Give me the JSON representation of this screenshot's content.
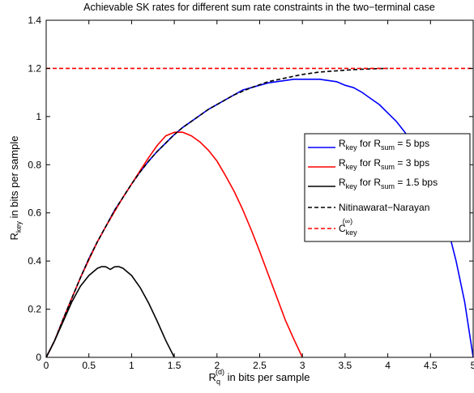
{
  "chart_data": {
    "type": "line",
    "title": "Achievable SK rates for different sum rate constraints in the two−terminal case",
    "xlabel": {
      "main": "R",
      "sub": "q",
      "sup": "(d)",
      "suffix": " in bits per sample"
    },
    "ylabel": {
      "main": "R",
      "sub": "key",
      "suffix": " in bits per sample"
    },
    "xlim": [
      0,
      5
    ],
    "ylim": [
      0,
      1.4
    ],
    "xticks": [
      0,
      0.5,
      1,
      1.5,
      2,
      2.5,
      3,
      3.5,
      4,
      4.5,
      5
    ],
    "yticks": [
      0,
      0.2,
      0.4,
      0.6,
      0.8,
      1,
      1.2,
      1.4
    ],
    "xtick_labels": [
      "0",
      "0.5",
      "1",
      "1.5",
      "2",
      "2.5",
      "3",
      "3.5",
      "4",
      "4.5",
      "5"
    ],
    "ytick_labels": [
      "0",
      "0.2",
      "0.4",
      "0.6",
      "0.8",
      "1",
      "1.2",
      "1.4"
    ],
    "grid": false,
    "legend_position": "right",
    "series": [
      {
        "legend": {
          "main": "R",
          "sub": "key",
          "mid": " for R",
          "sub2": "sum",
          "rest": " = 5 bps"
        },
        "color": "#0000ff",
        "dash": "solid",
        "x": [
          0,
          0.05,
          0.1,
          0.2,
          0.3,
          0.4,
          0.5,
          0.6,
          0.7,
          0.8,
          0.9,
          1.0,
          1.1,
          1.2,
          1.3,
          1.4,
          1.5,
          1.6,
          1.7,
          1.8,
          1.9,
          2.0,
          2.1,
          2.2,
          2.3,
          2.4,
          2.5,
          2.6,
          2.7,
          2.8,
          2.9,
          3.0,
          3.1,
          3.2,
          3.3,
          3.4,
          3.5,
          3.6,
          3.7,
          3.8,
          3.9,
          4.0,
          4.1,
          4.2,
          4.3,
          4.4,
          4.5,
          4.6,
          4.7,
          4.8,
          4.9,
          5.0
        ],
        "y": [
          0,
          0.035,
          0.07,
          0.16,
          0.245,
          0.33,
          0.41,
          0.48,
          0.545,
          0.61,
          0.665,
          0.72,
          0.77,
          0.815,
          0.855,
          0.89,
          0.925,
          0.955,
          0.98,
          1.005,
          1.03,
          1.05,
          1.07,
          1.09,
          1.11,
          1.12,
          1.13,
          1.14,
          1.145,
          1.15,
          1.155,
          1.155,
          1.155,
          1.155,
          1.15,
          1.145,
          1.13,
          1.12,
          1.1,
          1.075,
          1.05,
          1.015,
          0.98,
          0.935,
          0.88,
          0.82,
          0.75,
          0.655,
          0.54,
          0.4,
          0.23,
          0
        ]
      },
      {
        "legend": {
          "main": "R",
          "sub": "key",
          "mid": " for R",
          "sub2": "sum",
          "rest": " = 3 bps"
        },
        "color": "#ff0000",
        "dash": "solid",
        "x": [
          0,
          0.05,
          0.1,
          0.2,
          0.3,
          0.4,
          0.5,
          0.6,
          0.7,
          0.8,
          0.9,
          1.0,
          1.1,
          1.2,
          1.3,
          1.4,
          1.5,
          1.6,
          1.7,
          1.8,
          1.9,
          2.0,
          2.1,
          2.2,
          2.3,
          2.4,
          2.5,
          2.6,
          2.7,
          2.8,
          2.9,
          3.0
        ],
        "y": [
          0,
          0.035,
          0.07,
          0.16,
          0.245,
          0.33,
          0.405,
          0.48,
          0.545,
          0.605,
          0.665,
          0.72,
          0.775,
          0.83,
          0.88,
          0.92,
          0.935,
          0.935,
          0.92,
          0.895,
          0.86,
          0.815,
          0.755,
          0.69,
          0.615,
          0.53,
          0.44,
          0.345,
          0.25,
          0.155,
          0.075,
          0
        ]
      },
      {
        "legend": {
          "main": "R",
          "sub": "key",
          "mid": " for R",
          "sub2": "sum",
          "rest": " = 1.5 bps"
        },
        "color": "#000000",
        "dash": "solid",
        "x": [
          0,
          0.05,
          0.1,
          0.2,
          0.3,
          0.4,
          0.5,
          0.6,
          0.65,
          0.7,
          0.75,
          0.8,
          0.85,
          0.9,
          1.0,
          1.1,
          1.2,
          1.3,
          1.4,
          1.5
        ],
        "y": [
          0,
          0.035,
          0.07,
          0.15,
          0.23,
          0.295,
          0.34,
          0.37,
          0.377,
          0.376,
          0.365,
          0.376,
          0.377,
          0.37,
          0.34,
          0.29,
          0.225,
          0.15,
          0.07,
          0
        ]
      },
      {
        "legend": {
          "main": "Nitinawarat−Narayan"
        },
        "color": "#000000",
        "dash": "dashed",
        "x": [
          0,
          0.05,
          0.1,
          0.2,
          0.3,
          0.4,
          0.5,
          0.6,
          0.7,
          0.8,
          0.9,
          1.0,
          1.1,
          1.2,
          1.3,
          1.4,
          1.5,
          1.6,
          1.7,
          1.8,
          1.9,
          2.0,
          2.2,
          2.4,
          2.6,
          2.8,
          3.0,
          3.2,
          3.4,
          3.6,
          3.8,
          4.0
        ],
        "y": [
          0,
          0.035,
          0.07,
          0.16,
          0.245,
          0.33,
          0.41,
          0.48,
          0.545,
          0.61,
          0.665,
          0.72,
          0.77,
          0.815,
          0.855,
          0.89,
          0.925,
          0.955,
          0.98,
          1.005,
          1.03,
          1.05,
          1.09,
          1.12,
          1.145,
          1.16,
          1.175,
          1.185,
          1.19,
          1.195,
          1.198,
          1.2
        ]
      },
      {
        "legend": {
          "main": "C",
          "sub": "key",
          "sup": "(∞)"
        },
        "color": "#ff0000",
        "dash": "dashed",
        "x": [
          0,
          5
        ],
        "y": [
          1.2,
          1.2
        ]
      }
    ]
  }
}
